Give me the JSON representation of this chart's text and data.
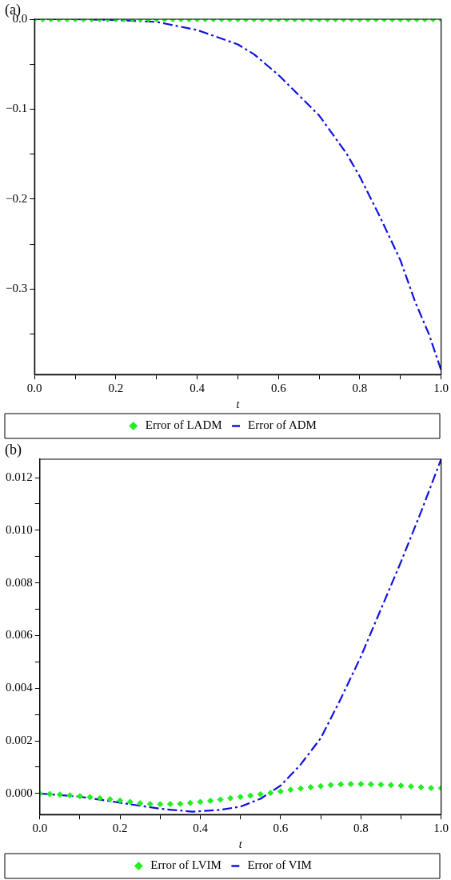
{
  "chart_data": [
    {
      "type": "line",
      "xlabel": "t",
      "annotations": [
        "(a)"
      ],
      "xlim": [
        0,
        1
      ],
      "ylim": [
        -0.395,
        0
      ],
      "xticks": [
        {
          "value": 0,
          "label": "0.0"
        },
        {
          "value": 0.1,
          "label": null
        },
        {
          "value": 0.2,
          "label": "0.2"
        },
        {
          "value": 0.3,
          "label": null
        },
        {
          "value": 0.4,
          "label": "0.4"
        },
        {
          "value": 0.5,
          "label": null
        },
        {
          "value": 0.6,
          "label": "0.6"
        },
        {
          "value": 0.7,
          "label": null
        },
        {
          "value": 0.8,
          "label": "0.8"
        },
        {
          "value": 0.9,
          "label": null
        },
        {
          "value": 1,
          "label": "1.0"
        }
      ],
      "yticks": [
        {
          "value": 0,
          "label": "0.0"
        },
        {
          "value": -0.05,
          "label": null
        },
        {
          "value": -0.1,
          "label": "−0.1"
        },
        {
          "value": -0.15,
          "label": null
        },
        {
          "value": -0.2,
          "label": "−0.2"
        },
        {
          "value": -0.25,
          "label": null
        },
        {
          "value": -0.3,
          "label": "−0.3"
        },
        {
          "value": -0.35,
          "label": null
        }
      ],
      "legend": "bottom",
      "grid": false,
      "series": [
        {
          "name": "Error of LADM",
          "type": "scatter",
          "marker": "diamond",
          "color": "#22ee22",
          "x": [
            0,
            0.02,
            0.04,
            0.06,
            0.08,
            0.1,
            0.12,
            0.14,
            0.16,
            0.18,
            0.2,
            0.22,
            0.24,
            0.26,
            0.28,
            0.3,
            0.32,
            0.34,
            0.36,
            0.38,
            0.4,
            0.42,
            0.44,
            0.46,
            0.48,
            0.5,
            0.52,
            0.54,
            0.56,
            0.58,
            0.6,
            0.62,
            0.64,
            0.66,
            0.68,
            0.7,
            0.72,
            0.74,
            0.76,
            0.78,
            0.8,
            0.82,
            0.84,
            0.86,
            0.88,
            0.9,
            0.92,
            0.94,
            0.96,
            0.98,
            1
          ],
          "values": [
            0,
            0,
            0,
            0,
            0,
            0,
            0,
            0,
            0,
            0,
            0,
            0,
            0,
            0,
            0,
            0,
            0,
            0,
            0,
            0,
            0,
            0,
            0,
            0,
            0,
            0,
            0,
            0,
            0,
            0,
            0,
            0,
            0,
            0,
            0,
            0,
            0,
            0,
            0,
            0,
            0,
            0,
            0,
            0,
            0,
            0,
            0,
            0,
            0,
            0,
            0
          ]
        },
        {
          "name": "Error of ADM",
          "type": "line",
          "line_style": "dashed",
          "marker": "none",
          "color": "#1010e0",
          "x": [
            0,
            0.1,
            0.2,
            0.3,
            0.4,
            0.5,
            0.54,
            0.6,
            0.7,
            0.767,
            0.8,
            0.85,
            0.9,
            0.936,
            0.97,
            1
          ],
          "values": [
            0,
            0,
            -0.001,
            -0.003,
            -0.012,
            -0.028,
            -0.039,
            -0.062,
            -0.107,
            -0.149,
            -0.175,
            -0.22,
            -0.268,
            -0.314,
            -0.35,
            -0.39
          ]
        }
      ]
    },
    {
      "type": "line",
      "xlabel": "t",
      "annotations": [
        "(b)"
      ],
      "xlim": [
        0,
        1
      ],
      "ylim": [
        -0.0008,
        0.0127
      ],
      "xticks": [
        {
          "value": 0,
          "label": "0.0"
        },
        {
          "value": 0.1,
          "label": null
        },
        {
          "value": 0.2,
          "label": "0.2"
        },
        {
          "value": 0.3,
          "label": null
        },
        {
          "value": 0.4,
          "label": "0.4"
        },
        {
          "value": 0.5,
          "label": null
        },
        {
          "value": 0.6,
          "label": "0.6"
        },
        {
          "value": 0.7,
          "label": null
        },
        {
          "value": 0.8,
          "label": "0.8"
        },
        {
          "value": 0.9,
          "label": null
        },
        {
          "value": 1,
          "label": "1.0"
        }
      ],
      "yticks": [
        {
          "value": 0,
          "label": "0.000"
        },
        {
          "value": 0.001,
          "label": null
        },
        {
          "value": 0.002,
          "label": "0.002"
        },
        {
          "value": 0.003,
          "label": null
        },
        {
          "value": 0.004,
          "label": "0.004"
        },
        {
          "value": 0.005,
          "label": null
        },
        {
          "value": 0.006,
          "label": "0.006"
        },
        {
          "value": 0.007,
          "label": null
        },
        {
          "value": 0.008,
          "label": "0.008"
        },
        {
          "value": 0.009,
          "label": null
        },
        {
          "value": 0.01,
          "label": "0.010"
        },
        {
          "value": 0.011,
          "label": null
        },
        {
          "value": 0.012,
          "label": "0.012"
        }
      ],
      "legend": "bottom",
      "grid": false,
      "series": [
        {
          "name": "Error of LVIM",
          "type": "scatter",
          "marker": "diamond",
          "color": "#22ee22",
          "x": [
            0,
            0.025,
            0.05,
            0.075,
            0.1,
            0.125,
            0.15,
            0.175,
            0.2,
            0.225,
            0.25,
            0.275,
            0.3,
            0.325,
            0.35,
            0.375,
            0.4,
            0.425,
            0.45,
            0.475,
            0.5,
            0.525,
            0.55,
            0.575,
            0.6,
            0.625,
            0.65,
            0.675,
            0.7,
            0.725,
            0.75,
            0.775,
            0.8,
            0.825,
            0.85,
            0.875,
            0.9,
            0.925,
            0.95,
            0.975,
            1
          ],
          "values": [
            0,
            -2e-05,
            -4e-05,
            -7e-05,
            -0.0001,
            -0.00014,
            -0.00018,
            -0.00022,
            -0.00027,
            -0.00032,
            -0.00037,
            -0.0004,
            -0.00041,
            -0.0004,
            -0.00039,
            -0.00036,
            -0.00032,
            -0.00028,
            -0.00023,
            -0.00018,
            -0.00013,
            -8e-05,
            -3e-05,
            2e-05,
            8e-05,
            0.00014,
            0.00019,
            0.00024,
            0.00028,
            0.00032,
            0.00035,
            0.00036,
            0.00036,
            0.00035,
            0.00034,
            0.00032,
            0.0003,
            0.00027,
            0.00024,
            0.00021,
            0.0002
          ]
        },
        {
          "name": "Error of VIM",
          "type": "line",
          "line_style": "dashed",
          "marker": "none",
          "color": "#1010e0",
          "x": [
            0,
            0.1,
            0.2,
            0.3,
            0.38,
            0.45,
            0.5,
            0.55,
            0.6,
            0.65,
            0.7,
            0.75,
            0.8,
            0.85,
            0.9,
            0.95,
            1
          ],
          "values": [
            0,
            -0.00012,
            -0.00035,
            -0.00058,
            -0.00069,
            -0.00062,
            -0.0005,
            -0.0002,
            0.0003,
            0.0011,
            0.0021,
            0.0036,
            0.0052,
            0.007,
            0.0088,
            0.0107,
            0.0127
          ]
        }
      ]
    }
  ]
}
